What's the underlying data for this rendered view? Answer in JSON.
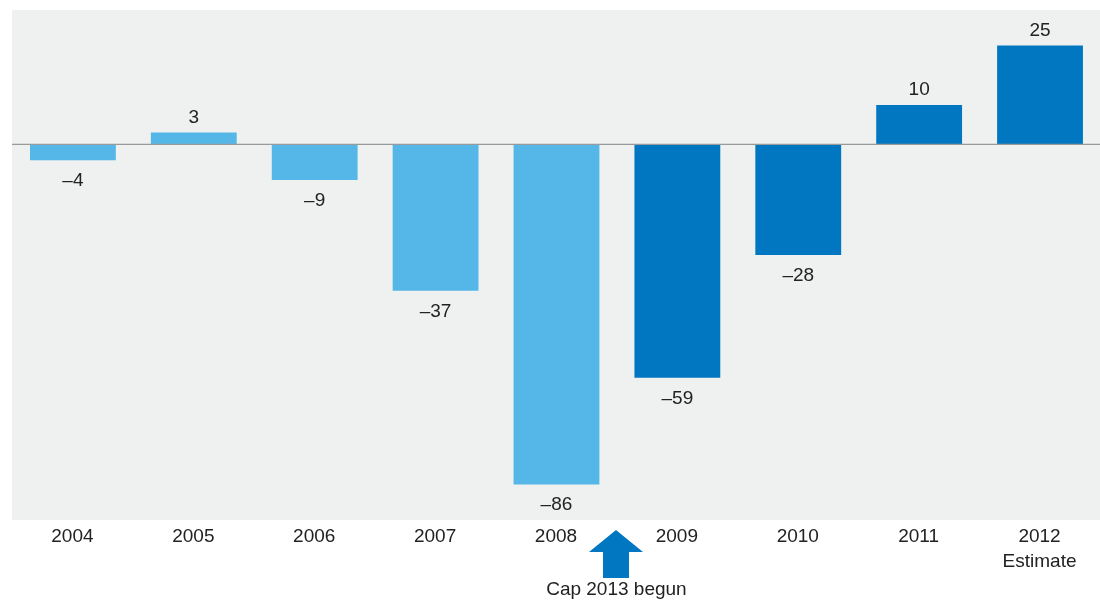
{
  "chart_data": {
    "type": "bar",
    "categories": [
      "2004",
      "2005",
      "2006",
      "2007",
      "2008",
      "2009",
      "2010",
      "2011",
      "2012\nEstimate"
    ],
    "values": [
      -4,
      3,
      -9,
      -37,
      -86,
      -59,
      -28,
      10,
      25
    ],
    "colors": [
      "#55b7e8",
      "#55b7e8",
      "#55b7e8",
      "#55b7e8",
      "#55b7e8",
      "#0077c0",
      "#0077c0",
      "#0077c0",
      "#0077c0"
    ],
    "value_labels": [
      "–4",
      "3",
      "–9",
      "–37",
      "–86",
      "–59",
      "–28",
      "10",
      "25"
    ],
    "ref_lines": [
      {
        "axis": "y",
        "value": 0,
        "color": "#9a9a9a"
      }
    ],
    "annotations": [
      "Cap 2013 begun"
    ],
    "grid": false
  }
}
